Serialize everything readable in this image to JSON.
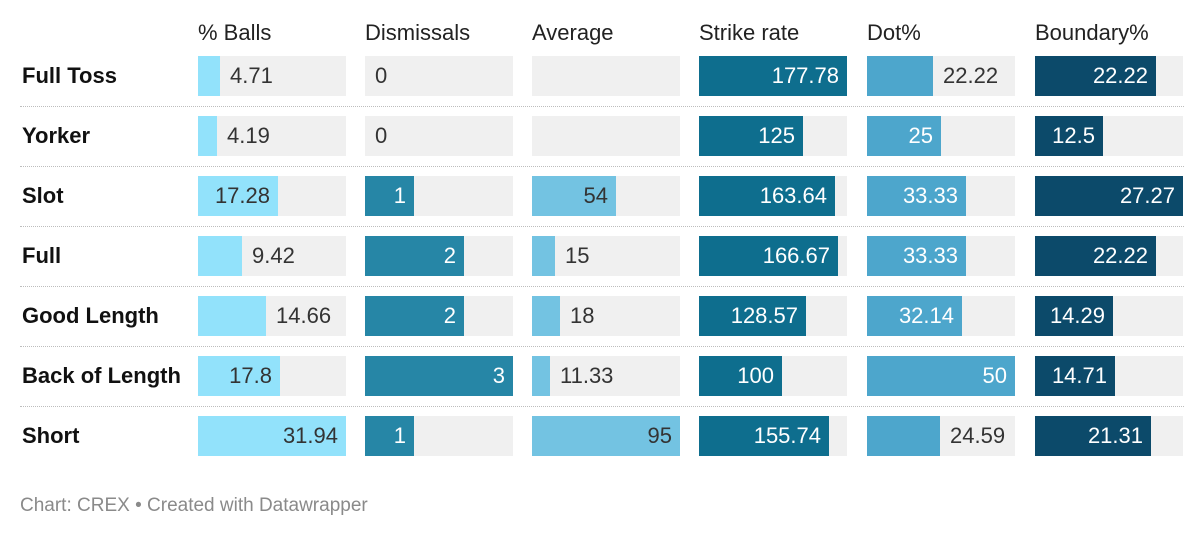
{
  "footer": {
    "text": "Chart: CREX • Created with Datawrapper"
  },
  "chart_data": {
    "type": "table",
    "rows": [
      "Full Toss",
      "Yorker",
      "Slot",
      "Full",
      "Good Length",
      "Back of Length",
      "Short"
    ],
    "columns": [
      {
        "name": "% Balls",
        "bar_color": "#92e2fb",
        "text_on_bar": "#333333",
        "values": [
          4.71,
          4.19,
          17.28,
          9.42,
          14.66,
          17.8,
          31.94
        ],
        "labels": [
          "4.71",
          "4.19",
          "17.28",
          "9.42",
          "14.66",
          "17.8",
          "31.94"
        ],
        "max": 31.94
      },
      {
        "name": "Dismissals",
        "bar_color": "#2686a6",
        "text_on_bar": "#ffffff",
        "values": [
          0,
          0,
          1,
          2,
          2,
          3,
          1
        ],
        "labels": [
          "0",
          "0",
          "1",
          "2",
          "2",
          "3",
          "1"
        ],
        "max": 3
      },
      {
        "name": "Average",
        "bar_color": "#73c3e2",
        "text_on_bar": "#333333",
        "values": [
          null,
          null,
          54,
          15,
          18,
          11.33,
          95
        ],
        "labels": [
          "",
          "",
          "54",
          "15",
          "18",
          "11.33",
          "95"
        ],
        "max": 95
      },
      {
        "name": "Strike rate",
        "bar_color": "#0e6e8e",
        "text_on_bar": "#ffffff",
        "values": [
          177.78,
          125,
          163.64,
          166.67,
          128.57,
          100,
          155.74
        ],
        "labels": [
          "177.78",
          "125",
          "163.64",
          "166.67",
          "128.57",
          "100",
          "155.74"
        ],
        "max": 177.78
      },
      {
        "name": "Dot%",
        "bar_color": "#4da6cc",
        "text_on_bar": "#ffffff",
        "values": [
          22.22,
          25,
          33.33,
          33.33,
          32.14,
          50,
          24.59
        ],
        "labels": [
          "22.22",
          "25",
          "33.33",
          "33.33",
          "32.14",
          "50",
          "24.59"
        ],
        "max": 50
      },
      {
        "name": "Boundary%",
        "bar_color": "#0c4a6a",
        "text_on_bar": "#ffffff",
        "values": [
          22.22,
          12.5,
          27.27,
          22.22,
          14.29,
          14.71,
          21.31
        ],
        "labels": [
          "22.22",
          "12.5",
          "27.27",
          "22.22",
          "14.29",
          "14.71",
          "21.31"
        ],
        "max": 27.27
      }
    ]
  }
}
